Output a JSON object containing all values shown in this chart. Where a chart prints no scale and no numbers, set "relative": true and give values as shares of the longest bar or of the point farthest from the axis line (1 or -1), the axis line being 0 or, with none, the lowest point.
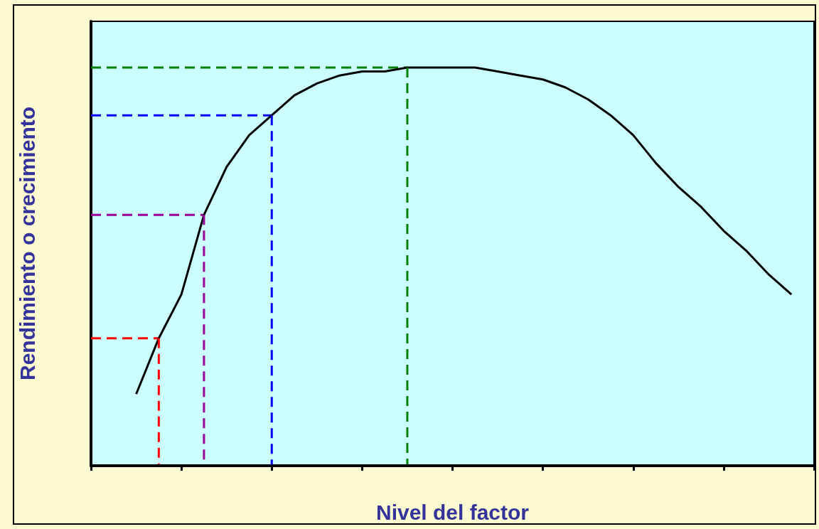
{
  "chart_data": {
    "type": "line",
    "xlabel": "Nivel del factor",
    "ylabel": "Rendimiento o crecimiento",
    "relative": true,
    "categories": [
      null,
      null,
      null,
      null,
      null,
      null,
      null,
      null,
      null,
      null,
      null,
      null,
      null,
      null,
      null,
      null,
      null,
      null,
      null,
      null,
      null,
      null,
      null,
      null,
      null,
      null,
      null,
      null,
      null,
      null,
      null,
      null,
      null
    ],
    "grid": false,
    "marker": "none",
    "series": [
      {
        "color": "#000000",
        "line_style": "solid",
        "values": [
          null,
          null,
          0.18,
          0.32,
          0.43,
          0.63,
          0.75,
          0.83,
          0.88,
          0.93,
          0.96,
          0.98,
          0.99,
          0.99,
          1.0,
          1.0,
          1.0,
          1.0,
          0.99,
          0.98,
          0.97,
          0.95,
          0.92,
          0.88,
          0.83,
          0.76,
          0.7,
          0.65,
          0.59,
          0.54,
          0.48,
          0.43,
          null
        ]
      },
      {
        "color": "#ff0000",
        "line_style": "dashed",
        "values": [
          0.32,
          0.32,
          0.32,
          0.32,
          null,
          null,
          null,
          null,
          null,
          null,
          null,
          null,
          null,
          null,
          null,
          null,
          null,
          null,
          null,
          null,
          null,
          null,
          null,
          null,
          null,
          null,
          null,
          null,
          null,
          null,
          null,
          null,
          null
        ]
      },
      {
        "color": "#990099",
        "line_style": "dashed",
        "values": [
          0.63,
          0.63,
          0.63,
          0.63,
          0.63,
          0.63,
          null,
          null,
          null,
          null,
          null,
          null,
          null,
          null,
          null,
          null,
          null,
          null,
          null,
          null,
          null,
          null,
          null,
          null,
          null,
          null,
          null,
          null,
          null,
          null,
          null,
          null,
          null
        ]
      },
      {
        "color": "#0000ff",
        "line_style": "dashed",
        "values": [
          0.88,
          0.88,
          0.88,
          0.88,
          0.88,
          0.88,
          0.88,
          0.88,
          0.88,
          null,
          null,
          null,
          null,
          null,
          null,
          null,
          null,
          null,
          null,
          null,
          null,
          null,
          null,
          null,
          null,
          null,
          null,
          null,
          null,
          null,
          null,
          null,
          null
        ]
      },
      {
        "color": "#008000",
        "line_style": "dashed",
        "values": [
          1.0,
          1.0,
          1.0,
          1.0,
          1.0,
          1.0,
          1.0,
          1.0,
          1.0,
          1.0,
          1.0,
          1.0,
          1.0,
          1.0,
          1.0,
          null,
          null,
          null,
          null,
          null,
          null,
          null,
          null,
          null,
          null,
          null,
          null,
          null,
          null,
          null,
          null,
          null,
          null
        ]
      }
    ]
  }
}
